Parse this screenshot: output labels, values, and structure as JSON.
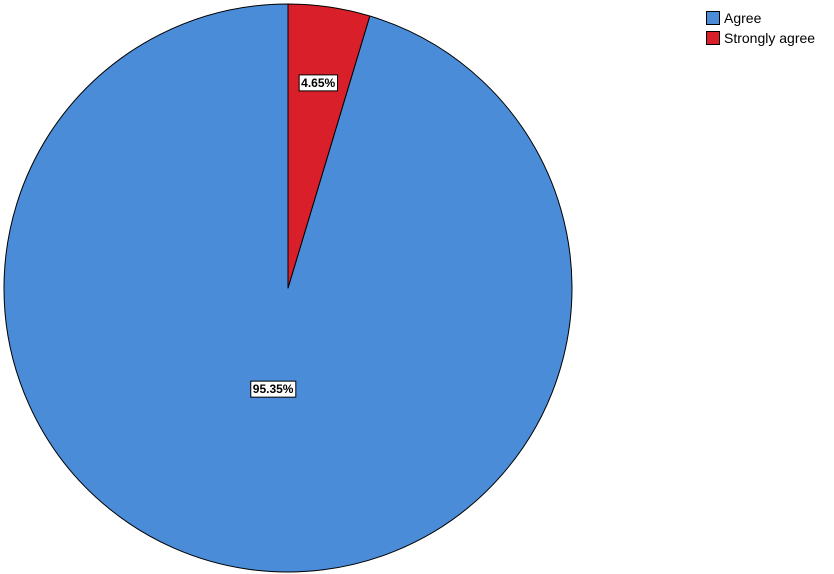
{
  "chart_data": {
    "type": "pie",
    "title": "",
    "slices": [
      {
        "label": "Agree",
        "value": 95.35,
        "display": "95.35%",
        "color": "#4a8cd8"
      },
      {
        "label": "Strongly agree",
        "value": 4.65,
        "display": "4.65%",
        "color": "#d81f2a"
      }
    ],
    "start_angle_deg": 0,
    "direction": "counterclockwise",
    "legend_position": "top-right"
  }
}
